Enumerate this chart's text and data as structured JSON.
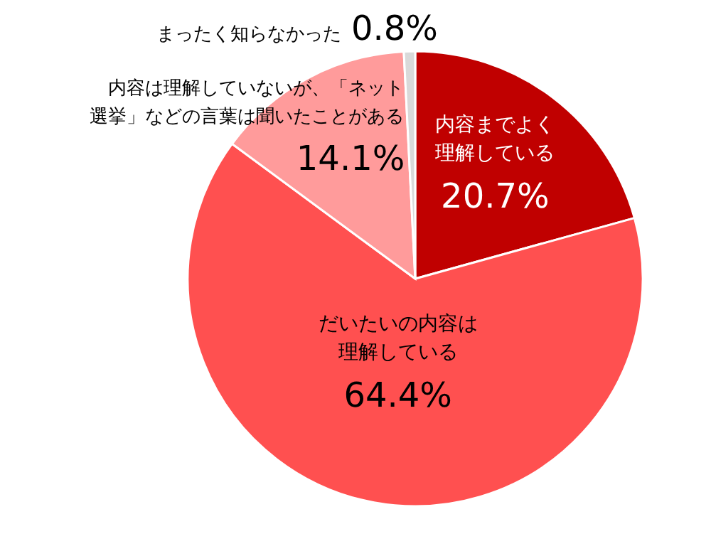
{
  "chart_data": {
    "type": "pie",
    "categories": [
      "内容までよく理解している",
      "だいたいの内容は理解している",
      "内容は理解していないが、「ネット選挙」などの言葉は聞いたことがある",
      "まったく知らなかった"
    ],
    "values": [
      20.7,
      64.4,
      14.1,
      0.8
    ],
    "colors": [
      "#c00000",
      "#ff5050",
      "#ff9b9b",
      "#d9d9d9"
    ],
    "value_labels": [
      "20.7%",
      "64.4%",
      "14.1%",
      "0.8%"
    ]
  }
}
